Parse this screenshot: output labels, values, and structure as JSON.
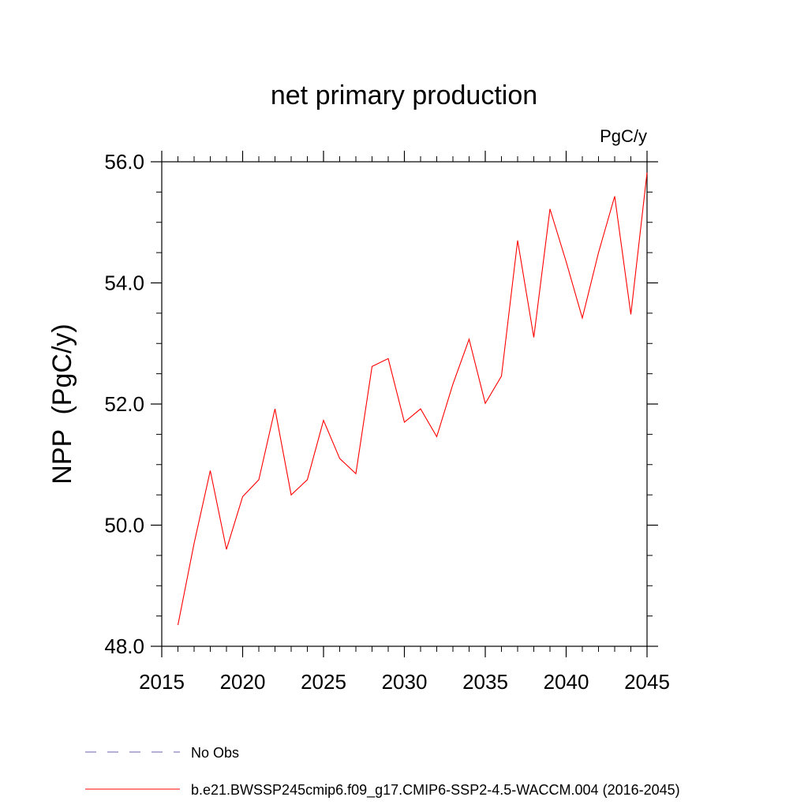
{
  "chart_data": {
    "type": "line",
    "title": "net primary production",
    "units_label": "PgC/y",
    "ylabel": "NPP  (PgC/y)",
    "xlabel": "",
    "xlim": [
      2015,
      2045
    ],
    "ylim": [
      48.0,
      56.0
    ],
    "x_ticks": [
      2015,
      2020,
      2025,
      2030,
      2035,
      2040,
      2045
    ],
    "x_tick_labels": [
      "2015",
      "2020",
      "2025",
      "2030",
      "2035",
      "2040",
      "2045"
    ],
    "y_ticks": [
      48.0,
      50.0,
      52.0,
      54.0,
      56.0
    ],
    "y_tick_labels": [
      "48.0",
      "50.0",
      "52.0",
      "54.0",
      "56.0"
    ],
    "grid": false,
    "legend_position": "bottom",
    "series": [
      {
        "name": "No Obs",
        "color": "#6f5fb0",
        "dash": "dashed",
        "x": [],
        "values": []
      },
      {
        "name": "b.e21.BWSSP245cmip6.f09_g17.CMIP6-SSP2-4.5-WACCM.004 (2016-2045)",
        "color": "#ff0000",
        "dash": "solid",
        "x": [
          2016,
          2017,
          2018,
          2019,
          2020,
          2021,
          2022,
          2023,
          2024,
          2025,
          2026,
          2027,
          2028,
          2029,
          2030,
          2031,
          2032,
          2033,
          2034,
          2035,
          2036,
          2037,
          2038,
          2039,
          2040,
          2041,
          2042,
          2043,
          2044,
          2045
        ],
        "values": [
          48.35,
          49.7,
          50.9,
          49.6,
          50.47,
          50.75,
          51.92,
          50.5,
          50.75,
          51.73,
          51.1,
          50.85,
          52.62,
          52.75,
          51.7,
          51.92,
          51.46,
          52.33,
          53.07,
          52.01,
          52.46,
          54.7,
          53.1,
          55.22,
          54.35,
          53.42,
          54.5,
          55.43,
          53.48,
          55.82
        ]
      }
    ]
  }
}
